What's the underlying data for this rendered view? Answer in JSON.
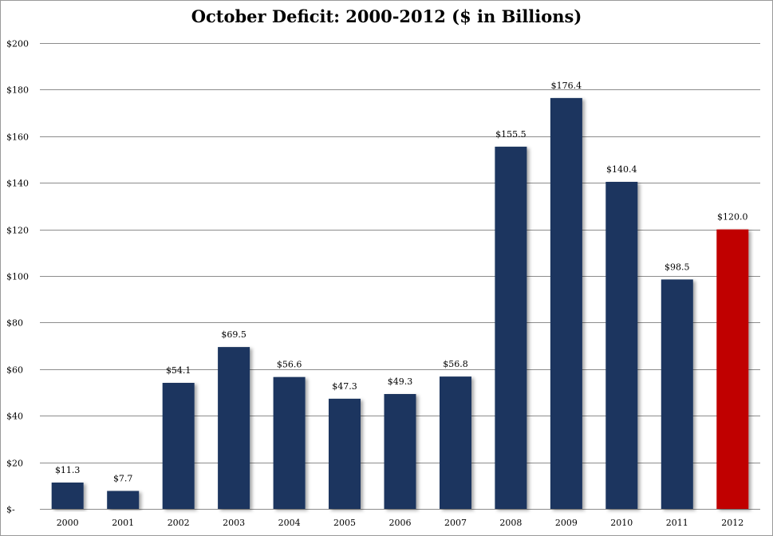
{
  "chart_data": {
    "type": "bar",
    "title": "October Deficit: 2000-2012 ($ in Billions)",
    "xlabel": "",
    "ylabel": "",
    "categories": [
      "2000",
      "2001",
      "2002",
      "2003",
      "2004",
      "2005",
      "2006",
      "2007",
      "2008",
      "2009",
      "2010",
      "2011",
      "2012"
    ],
    "values": [
      11.3,
      7.7,
      54.1,
      69.5,
      56.6,
      47.3,
      49.3,
      56.8,
      155.5,
      176.4,
      140.4,
      98.5,
      120.0
    ],
    "data_labels": [
      "$11.3",
      "$7.7",
      "$54.1",
      "$69.5",
      "$56.6",
      "$47.3",
      "$49.3",
      "$56.8",
      "$155.5",
      "$176.4",
      "$140.4",
      "$98.5",
      "$120.0"
    ],
    "ylim": [
      0,
      200
    ],
    "yticks": [
      0,
      20,
      40,
      60,
      80,
      100,
      120,
      140,
      160,
      180,
      200
    ],
    "ytick_labels": [
      "$-",
      "$20",
      "$40",
      "$60",
      "$80",
      "$100",
      "$120",
      "$140",
      "$160",
      "$180",
      "$200"
    ],
    "grid": true,
    "legend": "none",
    "colors": {
      "bar": "#1a365f",
      "highlight_bar": "#c00000",
      "highlight_category": "2012",
      "gridline": "#8c8c8c"
    }
  }
}
